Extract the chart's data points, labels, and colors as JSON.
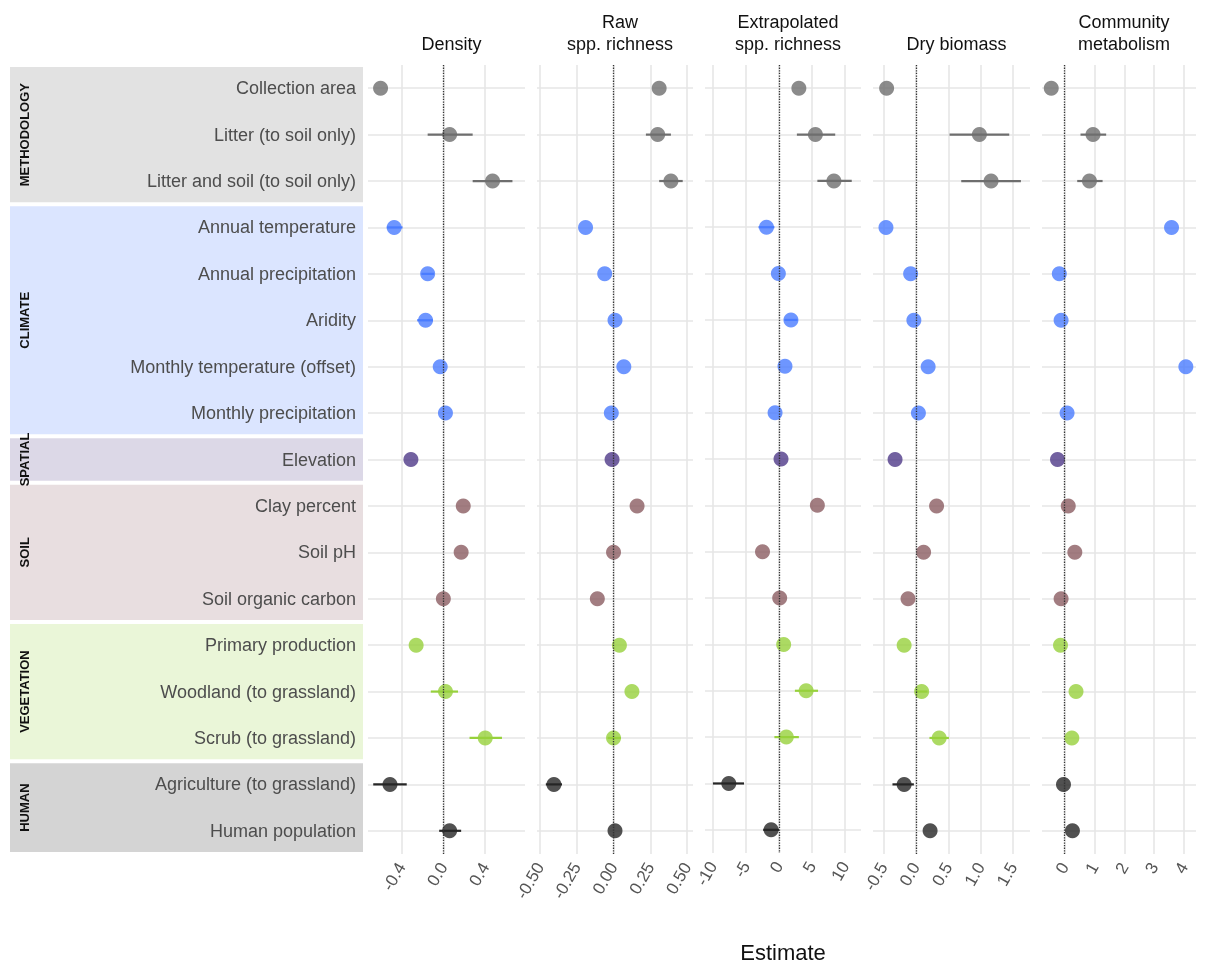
{
  "chart_data": [
    {
      "type": "scatter",
      "orientation": "horizontal",
      "title": "Density",
      "categories": [
        "Collection area",
        "Litter (to soil only)",
        "Litter and soil (to soil only)",
        "Annual temperature",
        "Annual precipitation",
        "Aridity",
        "Monthly temperature (offset)",
        "Monthly precipitation",
        "Elevation",
        "Clay percent",
        "Soil pH",
        "Soil organic carbon",
        "Primary production",
        "Woodland (to grassland)",
        "Scrub (to grassland)",
        "Agriculture (to grassland)",
        "Human population"
      ],
      "series": [
        {
          "color": "#6e6e6e",
          "values": [
            -0.6,
            0.06,
            0.47,
            null,
            null,
            null,
            null,
            null,
            null,
            null,
            null,
            null,
            null,
            null,
            null,
            null,
            null
          ],
          "errors": [
            null,
            [
              -0.15,
              0.28
            ],
            [
              0.28,
              0.66
            ],
            null,
            null,
            null,
            null,
            null,
            null,
            null,
            null,
            null,
            null,
            null,
            null,
            null,
            null
          ]
        },
        {
          "color": "#4a7cff",
          "values": [
            null,
            null,
            null,
            -0.47,
            -0.15,
            -0.17,
            -0.03,
            0.02,
            null,
            null,
            null,
            null,
            null,
            null,
            null,
            null,
            null
          ],
          "errors": [
            null,
            null,
            null,
            [
              -0.54,
              -0.39
            ],
            [
              -0.21,
              -0.09
            ],
            [
              -0.25,
              -0.1
            ],
            null,
            null,
            null,
            null,
            null,
            null,
            null,
            null,
            null,
            null,
            null
          ]
        },
        {
          "color": "#4f3a88",
          "values": [
            null,
            null,
            null,
            null,
            null,
            null,
            null,
            null,
            -0.31,
            null,
            null,
            null,
            null,
            null,
            null,
            null,
            null
          ]
        },
        {
          "color": "#8b5c62",
          "values": [
            null,
            null,
            null,
            null,
            null,
            null,
            null,
            null,
            null,
            0.19,
            0.17,
            0.0,
            null,
            null,
            null,
            null,
            null
          ]
        },
        {
          "color": "#97d13c",
          "values": [
            null,
            null,
            null,
            null,
            null,
            null,
            null,
            null,
            null,
            null,
            null,
            null,
            -0.26,
            0.02,
            0.4,
            null,
            null
          ],
          "errors": [
            null,
            null,
            null,
            null,
            null,
            null,
            null,
            null,
            null,
            null,
            null,
            null,
            null,
            [
              -0.12,
              0.14
            ],
            [
              0.25,
              0.56
            ],
            null,
            null
          ]
        },
        {
          "color": "#262626",
          "values": [
            null,
            null,
            null,
            null,
            null,
            null,
            null,
            null,
            null,
            null,
            null,
            null,
            null,
            null,
            null,
            -0.51,
            0.06
          ],
          "errors": [
            null,
            null,
            null,
            null,
            null,
            null,
            null,
            null,
            null,
            null,
            null,
            null,
            null,
            null,
            null,
            [
              -0.67,
              -0.35
            ],
            [
              -0.04,
              0.17
            ]
          ]
        }
      ],
      "annotations": [
        "METHODOLOGY",
        "CLIMATE",
        "SPATIAL",
        "SOIL",
        "VEGETATION",
        "HUMAN"
      ],
      "xlim": [
        -0.72,
        0.78
      ],
      "xticks": [
        {
          "value": -0.4,
          "label": "-0.4"
        },
        {
          "value": 0,
          "label": "0.0"
        },
        {
          "value": 0.4,
          "label": "0.4"
        }
      ],
      "ref_lines": [
        {
          "axis": "x",
          "value": 0,
          "line_style": "dotted"
        }
      ],
      "grid": true,
      "marker": "circle"
    },
    {
      "type": "scatter",
      "orientation": "horizontal",
      "title": "Raw\nspp. richness",
      "categories": [
        "Collection area",
        "Litter (to soil only)",
        "Litter and soil (to soil only)",
        "Annual temperature",
        "Annual precipitation",
        "Aridity",
        "Monthly temperature (offset)",
        "Monthly precipitation",
        "Elevation",
        "Clay percent",
        "Soil pH",
        "Soil organic carbon",
        "Primary production",
        "Woodland (to grassland)",
        "Scrub (to grassland)",
        "Agriculture (to grassland)",
        "Human population"
      ],
      "values": [
        0.31,
        0.3,
        0.39,
        -0.19,
        -0.06,
        0.01,
        0.07,
        -0.015,
        -0.01,
        0.16,
        0.0,
        -0.11,
        0.04,
        0.125,
        0.0,
        -0.405,
        0.01
      ],
      "errors": [
        null,
        [
          0.22,
          0.39
        ],
        [
          0.31,
          0.47
        ],
        null,
        null,
        null,
        null,
        null,
        null,
        null,
        null,
        null,
        null,
        null,
        [
          -0.04,
          0.05
        ],
        [
          -0.46,
          -0.35
        ],
        null
      ],
      "colors": [
        "#6e6e6e",
        "#6e6e6e",
        "#6e6e6e",
        "#4a7cff",
        "#4a7cff",
        "#4a7cff",
        "#4a7cff",
        "#4a7cff",
        "#4f3a88",
        "#8b5c62",
        "#8b5c62",
        "#8b5c62",
        "#97d13c",
        "#97d13c",
        "#97d13c",
        "#262626",
        "#262626"
      ],
      "xlim": [
        -0.52,
        0.54
      ],
      "xticks": [
        {
          "value": -0.5,
          "label": "-0.50"
        },
        {
          "value": -0.25,
          "label": "-0.25"
        },
        {
          "value": 0,
          "label": "0.00"
        },
        {
          "value": 0.25,
          "label": "0.25"
        },
        {
          "value": 0.5,
          "label": "0.50"
        }
      ],
      "ref_lines": [
        {
          "axis": "x",
          "value": 0,
          "line_style": "dotted"
        }
      ],
      "grid": true,
      "marker": "circle",
      "tick_labels": "x"
    },
    {
      "type": "scatter",
      "orientation": "horizontal",
      "title": "Extrapolated\nspp. richness",
      "xlabel": "Estimate",
      "categories": [
        "Collection area",
        "Litter (to soil only)",
        "Litter and soil (to soil only)",
        "Annual temperature",
        "Annual precipitation",
        "Aridity",
        "Monthly temperature (offset)",
        "Monthly precipitation",
        "Elevation",
        "Clay percent",
        "Soil pH",
        "Soil organic carbon",
        "Primary production",
        "Woodland (to grassland)",
        "Scrub (to grassland)",
        "Agriculture (to grassland)",
        "Human population"
      ],
      "values": [
        3.0,
        5.5,
        8.3,
        -1.9,
        -0.1,
        1.8,
        0.9,
        -0.6,
        0.3,
        5.8,
        -2.5,
        0.1,
        0.7,
        4.1,
        1.1,
        -7.6,
        -1.2
      ],
      "errors": [
        null,
        [
          2.7,
          8.5
        ],
        [
          5.8,
          11.0
        ],
        [
          -3.1,
          -0.7
        ],
        null,
        [
          0.8,
          2.8
        ],
        null,
        null,
        null,
        null,
        null,
        null,
        null,
        [
          2.4,
          5.9
        ],
        [
          -0.7,
          3.0
        ],
        [
          -10.0,
          -5.3
        ],
        [
          -2.4,
          0.0
        ]
      ],
      "colors": [
        "#6e6e6e",
        "#6e6e6e",
        "#6e6e6e",
        "#4a7cff",
        "#4a7cff",
        "#4a7cff",
        "#4a7cff",
        "#4a7cff",
        "#4f3a88",
        "#8b5c62",
        "#8b5c62",
        "#8b5c62",
        "#97d13c",
        "#97d13c",
        "#97d13c",
        "#262626",
        "#262626"
      ],
      "xlim": [
        -11.2,
        12.4
      ],
      "xticks": [
        -10,
        -5,
        0,
        5,
        10
      ],
      "ref_lines": [
        {
          "axis": "x",
          "value": 0,
          "line_style": "dotted"
        }
      ],
      "grid": true,
      "marker": "circle",
      "tick_labels": "x"
    },
    {
      "type": "scatter",
      "orientation": "horizontal",
      "title": "Dry biomass",
      "categories": [
        "Collection area",
        "Litter (to soil only)",
        "Litter and soil (to soil only)",
        "Annual temperature",
        "Annual precipitation",
        "Aridity",
        "Monthly temperature (offset)",
        "Monthly precipitation",
        "Elevation",
        "Clay percent",
        "Soil pH",
        "Soil organic carbon",
        "Primary production",
        "Woodland (to grassland)",
        "Scrub (to grassland)",
        "Agriculture (to grassland)",
        "Human population"
      ],
      "values": [
        -0.45,
        0.98,
        1.16,
        -0.46,
        -0.08,
        -0.03,
        0.19,
        0.04,
        -0.32,
        0.32,
        0.12,
        -0.12,
        -0.18,
        0.09,
        0.36,
        -0.18,
        0.22
      ],
      "errors": [
        null,
        [
          0.52,
          1.44
        ],
        [
          0.7,
          1.62
        ],
        null,
        null,
        null,
        null,
        null,
        null,
        null,
        null,
        null,
        null,
        [
          0.0,
          0.18
        ],
        [
          0.21,
          0.51
        ],
        [
          -0.36,
          -0.03
        ],
        null
      ],
      "colors": [
        "#6e6e6e",
        "#6e6e6e",
        "#6e6e6e",
        "#4a7cff",
        "#4a7cff",
        "#4a7cff",
        "#4a7cff",
        "#4a7cff",
        "#4f3a88",
        "#8b5c62",
        "#8b5c62",
        "#8b5c62",
        "#97d13c",
        "#97d13c",
        "#97d13c",
        "#262626",
        "#262626"
      ],
      "xlim": [
        -0.66,
        1.76
      ],
      "xticks": [
        {
          "value": -0.5,
          "label": "-0.5"
        },
        {
          "value": 0,
          "label": "0.0"
        },
        {
          "value": 0.5,
          "label": "0.5"
        },
        {
          "value": 1,
          "label": "1.0"
        },
        {
          "value": 1.5,
          "label": "1.5"
        }
      ],
      "ref_lines": [
        {
          "axis": "x",
          "value": 0,
          "line_style": "dotted"
        }
      ],
      "grid": true,
      "marker": "circle",
      "tick_labels": "x"
    },
    {
      "type": "scatter",
      "orientation": "horizontal",
      "title": "Community\nmetabolism",
      "categories": [
        "Collection area",
        "Litter (to soil only)",
        "Litter and soil (to soil only)",
        "Annual temperature",
        "Annual precipitation",
        "Aridity",
        "Monthly temperature (offset)",
        "Monthly precipitation",
        "Elevation",
        "Clay percent",
        "Soil pH",
        "Soil organic carbon",
        "Primary production",
        "Woodland (to grassland)",
        "Scrub (to grassland)",
        "Agriculture (to grassland)",
        "Human population"
      ],
      "values": [
        -0.45,
        0.95,
        0.83,
        3.58,
        -0.18,
        -0.12,
        4.06,
        0.08,
        -0.24,
        0.12,
        0.34,
        -0.12,
        -0.14,
        0.38,
        0.24,
        -0.04,
        0.26
      ],
      "errors": [
        null,
        [
          0.53,
          1.39
        ],
        [
          0.42,
          1.27
        ],
        null,
        null,
        null,
        null,
        null,
        null,
        null,
        null,
        null,
        null,
        null,
        null,
        null,
        null
      ],
      "colors": [
        "#6e6e6e",
        "#6e6e6e",
        "#6e6e6e",
        "#4a7cff",
        "#4a7cff",
        "#4a7cff",
        "#4a7cff",
        "#4a7cff",
        "#4f3a88",
        "#8b5c62",
        "#8b5c62",
        "#8b5c62",
        "#97d13c",
        "#97d13c",
        "#97d13c",
        "#262626",
        "#262626"
      ],
      "xlim": [
        -0.76,
        4.4
      ],
      "xticks": [
        0,
        1,
        2,
        3,
        4
      ],
      "ref_lines": [
        {
          "axis": "x",
          "value": 0,
          "line_style": "dotted"
        }
      ],
      "grid": true,
      "marker": "circle",
      "tick_labels": "x"
    }
  ]
}
